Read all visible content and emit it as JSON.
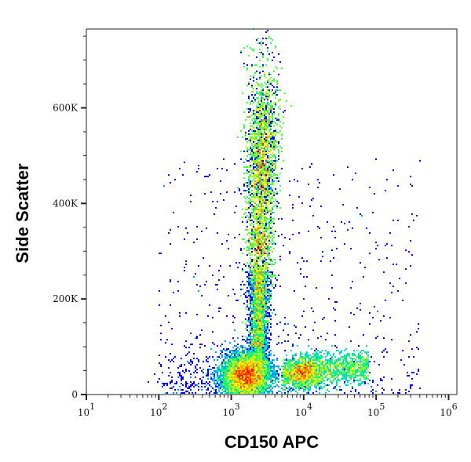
{
  "chart_data": {
    "type": "heatmap",
    "subtype": "flow-cytometry density dot plot",
    "title": "",
    "xlabel": "CD150 APC",
    "ylabel": "Side Scatter",
    "x_scale": "log",
    "xlim": [
      10,
      1300000
    ],
    "ylim": [
      0,
      765000
    ],
    "x_ticks": [
      {
        "value": 10,
        "base": "10",
        "exp": "1"
      },
      {
        "value": 100,
        "base": "10",
        "exp": "2"
      },
      {
        "value": 1000,
        "base": "10",
        "exp": "3"
      },
      {
        "value": 10000,
        "base": "10",
        "exp": "4"
      },
      {
        "value": 100000,
        "base": "10",
        "exp": "5"
      },
      {
        "value": 1000000,
        "base": "10",
        "exp": "6"
      }
    ],
    "y_ticks": [
      {
        "value": 0,
        "label": "0"
      },
      {
        "value": 200000,
        "label": "200K"
      },
      {
        "value": 400000,
        "label": "400K"
      },
      {
        "value": 600000,
        "label": "600K"
      }
    ],
    "grid": false,
    "color_scale": [
      "#0000ff",
      "#00c8ff",
      "#00ff60",
      "#ffff00",
      "#ff0000"
    ],
    "populations": [
      {
        "x_center": 2800,
        "y_center": 470000,
        "y_range": [
          100000,
          765000
        ],
        "relative_density": "high"
      },
      {
        "x_center": 1600,
        "y_center": 40000,
        "y_range": [
          0,
          120000
        ],
        "relative_density": "highest"
      },
      {
        "x_center": 15000,
        "x_range": [
          5000,
          90000
        ],
        "y_center": 50000,
        "relative_density": "high"
      }
    ]
  }
}
